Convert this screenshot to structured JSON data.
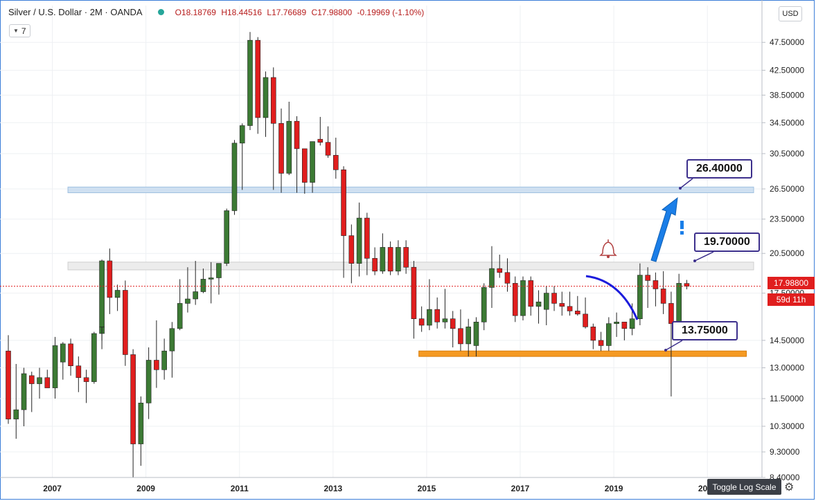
{
  "header": {
    "symbol_title": "Silver / U.S. Dollar · 2M · OANDA",
    "ohlc": {
      "open": "O18.18769",
      "high": "H18.44516",
      "low": "L17.76689",
      "close": "C17.98800",
      "change": "-0.19969 (-1.10%)"
    },
    "indicator_badge": "7",
    "currency": "USD"
  },
  "toolbar": {
    "toggle_log_label": "Toggle Log Scale",
    "gear_glyph": "⚙"
  },
  "price_labels": {
    "last_price": "17.98800",
    "countdown": "59d 11h"
  },
  "callouts": [
    {
      "label": "26.40000",
      "value": 26.4
    },
    {
      "label": "19.70000",
      "value": 19.7
    },
    {
      "label": "13.75000",
      "value": 13.75
    }
  ],
  "colors": {
    "up": "#3c7a34",
    "down": "#e01e1e",
    "accent": "#3c2f8c",
    "zone_blue": "#b9d3ea",
    "zone_gray": "#dedede",
    "zone_orange": "#f59a23",
    "arrow": "#1a7ee8",
    "curve": "#1c1cdc",
    "last_price": "#e01e1e"
  },
  "chart_data": {
    "type": "candlestick",
    "title": "Silver / U.S. Dollar · 2M · OANDA",
    "interval": "2M",
    "scale": "log",
    "ylim": [
      8.4,
      55
    ],
    "y_ticks": [
      47.5,
      42.5,
      38.5,
      34.5,
      30.5,
      26.5,
      23.5,
      20.5,
      17.5,
      14.5,
      13.0,
      11.5,
      10.3,
      9.3,
      8.4
    ],
    "y_tick_labels": [
      "47.50000",
      "42.50000",
      "38.50000",
      "34.50000",
      "30.50000",
      "26.50000",
      "23.50000",
      "20.50000",
      "17.50000",
      "14.50000",
      "13.00000",
      "11.50000",
      "10.30000",
      "9.30000",
      "8.40000"
    ],
    "x_ticks": [
      "2007",
      "2009",
      "2011",
      "2013",
      "2015",
      "2017",
      "2019",
      "2021"
    ],
    "x_range": [
      "2006-01",
      "2022-03"
    ],
    "last_price": 17.988,
    "zones": [
      {
        "from": "2007-05",
        "to": "2022-03",
        "low": 26.1,
        "high": 26.7,
        "color": "blue"
      },
      {
        "from": "2007-05",
        "to": "2022-03",
        "low": 19.2,
        "high": 19.8,
        "color": "gray"
      },
      {
        "from": "2014-11",
        "to": "2021-11",
        "low": 13.6,
        "high": 13.9,
        "color": "orange"
      }
    ],
    "candles": [
      [
        "2006-01",
        13.9,
        14.8,
        10.4,
        10.6
      ],
      [
        "2006-03",
        10.6,
        13.2,
        9.8,
        11.0
      ],
      [
        "2006-05",
        11.0,
        13.0,
        10.3,
        12.7
      ],
      [
        "2006-07",
        12.6,
        12.8,
        10.9,
        12.2
      ],
      [
        "2006-09",
        12.2,
        13.0,
        11.5,
        12.5
      ],
      [
        "2006-11",
        12.5,
        12.9,
        12.1,
        12.0
      ],
      [
        "2007-01",
        12.0,
        14.7,
        11.5,
        14.2
      ],
      [
        "2007-03",
        13.3,
        14.4,
        12.4,
        14.3
      ],
      [
        "2007-05",
        14.3,
        14.6,
        12.6,
        13.1
      ],
      [
        "2007-07",
        13.1,
        13.6,
        11.8,
        12.5
      ],
      [
        "2007-09",
        12.5,
        12.9,
        11.3,
        12.3
      ],
      [
        "2007-11",
        12.3,
        15.0,
        12.2,
        14.9
      ],
      [
        "2007-13",
        14.9,
        15.4,
        14.0,
        15.3
      ],
      [
        "2008-01",
        15.3,
        20.0,
        14.5,
        19.9
      ],
      [
        "2008-03",
        19.9,
        20.9,
        16.1,
        17.2
      ],
      [
        "2008-05",
        17.2,
        18.1,
        16.3,
        17.7
      ],
      [
        "2008-07",
        17.7,
        18.4,
        13.1,
        13.7
      ],
      [
        "2008-09",
        13.7,
        14.0,
        8.4,
        9.6
      ],
      [
        "2008-11",
        9.6,
        11.6,
        8.8,
        11.3
      ],
      [
        "2009-01",
        11.3,
        14.1,
        10.6,
        13.4
      ],
      [
        "2009-03",
        13.4,
        15.7,
        12.0,
        12.9
      ],
      [
        "2009-05",
        12.9,
        14.6,
        12.4,
        13.9
      ],
      [
        "2009-07",
        13.9,
        15.6,
        12.5,
        15.2
      ],
      [
        "2009-09",
        15.2,
        18.5,
        15.1,
        16.8
      ],
      [
        "2009-11",
        16.8,
        19.4,
        16.2,
        17.1
      ],
      [
        "2010-01",
        17.1,
        19.9,
        16.7,
        17.6
      ],
      [
        "2010-03",
        17.6,
        19.3,
        17.5,
        18.5
      ],
      [
        "2010-05",
        18.5,
        19.8,
        16.8,
        18.6
      ],
      [
        "2010-07",
        18.6,
        19.7,
        17.4,
        19.7
      ],
      [
        "2010-09",
        19.7,
        24.5,
        19.5,
        24.3
      ],
      [
        "2010-11",
        24.3,
        32.2,
        23.9,
        31.8
      ],
      [
        "2011-01",
        31.8,
        34.4,
        26.4,
        34.1
      ],
      [
        "2011-03",
        34.1,
        49.5,
        33.5,
        47.9
      ],
      [
        "2011-05",
        47.9,
        48.5,
        33.0,
        35.2
      ],
      [
        "2011-07",
        35.2,
        42.3,
        32.6,
        41.3
      ],
      [
        "2011-09",
        41.3,
        43.0,
        26.4,
        34.4
      ],
      [
        "2011-11",
        34.4,
        36.5,
        26.1,
        28.2
      ],
      [
        "2012-01",
        28.2,
        37.5,
        28.0,
        34.7
      ],
      [
        "2012-03",
        34.7,
        35.4,
        26.1,
        31.1
      ],
      [
        "2012-05",
        31.1,
        31.0,
        26.0,
        27.2
      ],
      [
        "2012-07",
        27.2,
        32.0,
        26.1,
        32.0
      ],
      [
        "2012-09",
        32.3,
        35.3,
        31.5,
        31.9
      ],
      [
        "2012-11",
        31.9,
        34.0,
        30.0,
        30.3
      ],
      [
        "2013-01",
        30.3,
        32.5,
        27.6,
        28.6
      ],
      [
        "2013-03",
        28.6,
        29.0,
        18.6,
        22.0
      ],
      [
        "2013-05",
        22.0,
        23.0,
        18.2,
        19.7
      ],
      [
        "2013-07",
        19.7,
        25.1,
        18.7,
        23.6
      ],
      [
        "2013-09",
        23.6,
        24.1,
        18.8,
        20.1
      ],
      [
        "2013-11",
        20.1,
        21.0,
        18.8,
        19.1
      ],
      [
        "2014-01",
        19.1,
        22.2,
        18.9,
        21.0
      ],
      [
        "2014-03",
        21.0,
        21.5,
        18.8,
        19.1
      ],
      [
        "2014-05",
        19.1,
        21.6,
        18.8,
        21.0
      ],
      [
        "2014-07",
        21.0,
        21.6,
        18.9,
        19.4
      ],
      [
        "2014-09",
        19.4,
        19.9,
        14.6,
        15.8
      ],
      [
        "2014-11",
        15.8,
        16.6,
        15.0,
        15.4
      ],
      [
        "2015-01",
        15.4,
        18.5,
        15.1,
        16.4
      ],
      [
        "2015-03",
        16.4,
        17.2,
        15.2,
        15.6
      ],
      [
        "2015-05",
        15.6,
        17.8,
        15.2,
        15.8
      ],
      [
        "2015-07",
        15.8,
        16.3,
        14.1,
        15.2
      ],
      [
        "2015-09",
        15.2,
        16.4,
        13.9,
        14.3
      ],
      [
        "2015-11",
        14.3,
        15.8,
        13.6,
        15.3
      ],
      [
        "2016-01",
        14.2,
        15.9,
        13.6,
        15.6
      ],
      [
        "2016-03",
        15.6,
        18.2,
        15.1,
        17.9
      ],
      [
        "2016-05",
        17.9,
        21.1,
        16.5,
        19.3
      ],
      [
        "2016-07",
        19.3,
        20.4,
        18.6,
        19.0
      ],
      [
        "2016-09",
        19.0,
        20.1,
        17.6,
        18.2
      ],
      [
        "2016-11",
        18.2,
        18.7,
        15.6,
        16.0
      ],
      [
        "2017-01",
        16.0,
        18.7,
        15.7,
        18.4
      ],
      [
        "2017-03",
        18.4,
        18.7,
        16.0,
        16.6
      ],
      [
        "2017-05",
        16.6,
        17.7,
        15.5,
        16.9
      ],
      [
        "2017-07",
        16.4,
        18.0,
        15.4,
        17.5
      ],
      [
        "2017-09",
        17.5,
        18.0,
        16.3,
        16.8
      ],
      [
        "2017-11",
        16.8,
        17.6,
        16.0,
        16.6
      ],
      [
        "2018-01",
        16.6,
        17.6,
        16.0,
        16.3
      ],
      [
        "2018-03",
        16.3,
        17.3,
        16.0,
        16.1
      ],
      [
        "2018-05",
        16.1,
        17.2,
        15.2,
        15.3
      ],
      [
        "2018-07",
        15.3,
        15.5,
        14.0,
        14.5
      ],
      [
        "2018-09",
        14.5,
        15.0,
        13.9,
        14.2
      ],
      [
        "2018-11",
        14.2,
        15.9,
        13.9,
        15.5
      ],
      [
        "2019-01",
        15.5,
        16.2,
        14.7,
        15.6
      ],
      [
        "2019-03",
        15.6,
        15.4,
        14.5,
        15.2
      ],
      [
        "2019-05",
        15.2,
        16.8,
        14.8,
        15.8
      ],
      [
        "2019-07",
        15.8,
        19.7,
        15.4,
        18.8
      ],
      [
        "2019-09",
        18.8,
        19.4,
        16.5,
        18.4
      ],
      [
        "2019-11",
        18.4,
        19.0,
        16.6,
        17.8
      ],
      [
        "2020-01",
        17.8,
        19.1,
        16.1,
        16.8
      ],
      [
        "2020-03",
        16.8,
        17.6,
        11.6,
        15.5
      ],
      [
        "2020-05",
        15.5,
        18.9,
        15.0,
        18.2
      ],
      [
        "2020-07",
        18.18769,
        18.44516,
        17.76689,
        17.988
      ]
    ]
  }
}
